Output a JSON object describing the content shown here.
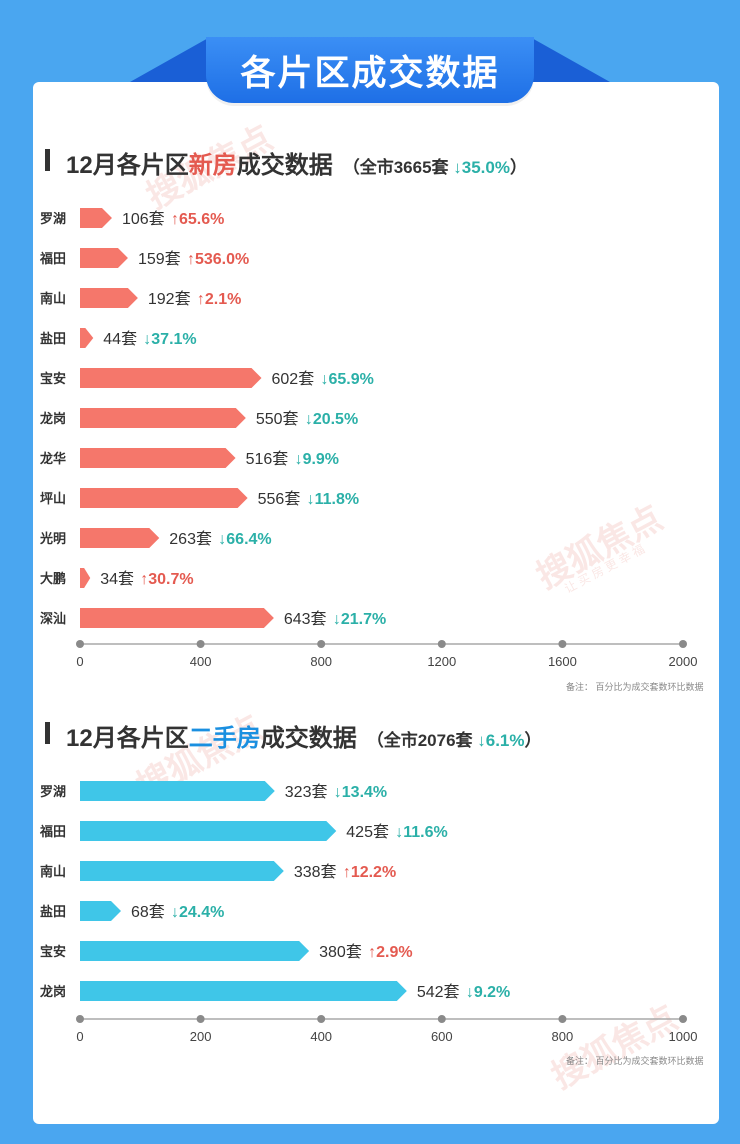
{
  "page_title": "各片区成交数据",
  "colors": {
    "new_bar": "#f5776b",
    "second_bar": "#3fc6e8",
    "up": "#e45a50",
    "down": "#2bb0a8",
    "axis": "#a8a8a8"
  },
  "sections": {
    "new": {
      "title_prefix": "12月各片区",
      "title_highlight": "新房",
      "title_suffix": "成交数据",
      "total_prefix": "（全市3665套 ",
      "total_change": "↓35.0%",
      "total_suffix": "）",
      "note": "备注：  百分比为成交套数环比数据"
    },
    "second": {
      "title_prefix": "12月各片区",
      "title_highlight": "二手房",
      "title_suffix": "成交数据",
      "total_prefix": "（全市2076套 ",
      "total_change": "↓6.1%",
      "total_suffix": "）",
      "note": "备注：  百分比为成交套数环比数据"
    }
  },
  "watermark": {
    "brand": "搜狐焦点",
    "slogan": "让 买 房 更 幸 福"
  },
  "chart_data": [
    {
      "type": "bar",
      "orientation": "horizontal",
      "title": "12月各片区新房成交数据",
      "categories": [
        "罗湖",
        "福田",
        "南山",
        "盐田",
        "宝安",
        "龙岗",
        "龙华",
        "坪山",
        "光明",
        "大鹏",
        "深汕"
      ],
      "values": [
        106,
        159,
        192,
        44,
        602,
        550,
        516,
        556,
        263,
        34,
        643
      ],
      "unit": "套",
      "changes": [
        "65.6%",
        "536.0%",
        "2.1%",
        "37.1%",
        "65.9%",
        "20.5%",
        "9.9%",
        "11.8%",
        "66.4%",
        "30.7%",
        "21.7%"
      ],
      "directions": [
        "up",
        "up",
        "up",
        "down",
        "down",
        "down",
        "down",
        "down",
        "down",
        "up",
        "down"
      ],
      "xlim": [
        0,
        2000
      ],
      "xticks": [
        "0",
        "400",
        "800",
        "1200",
        "1600",
        "2000"
      ],
      "grid": false,
      "color": "#f5776b"
    },
    {
      "type": "bar",
      "orientation": "horizontal",
      "title": "12月各片区二手房成交数据",
      "categories": [
        "罗湖",
        "福田",
        "南山",
        "盐田",
        "宝安",
        "龙岗"
      ],
      "values": [
        323,
        425,
        338,
        68,
        380,
        542
      ],
      "unit": "套",
      "changes": [
        "13.4%",
        "11.6%",
        "12.2%",
        "24.4%",
        "2.9%",
        "9.2%"
      ],
      "directions": [
        "down",
        "down",
        "up",
        "down",
        "up",
        "down"
      ],
      "xlim": [
        0,
        1000
      ],
      "xticks": [
        "0",
        "200",
        "400",
        "600",
        "800",
        "1000"
      ],
      "grid": false,
      "color": "#3fc6e8"
    }
  ]
}
